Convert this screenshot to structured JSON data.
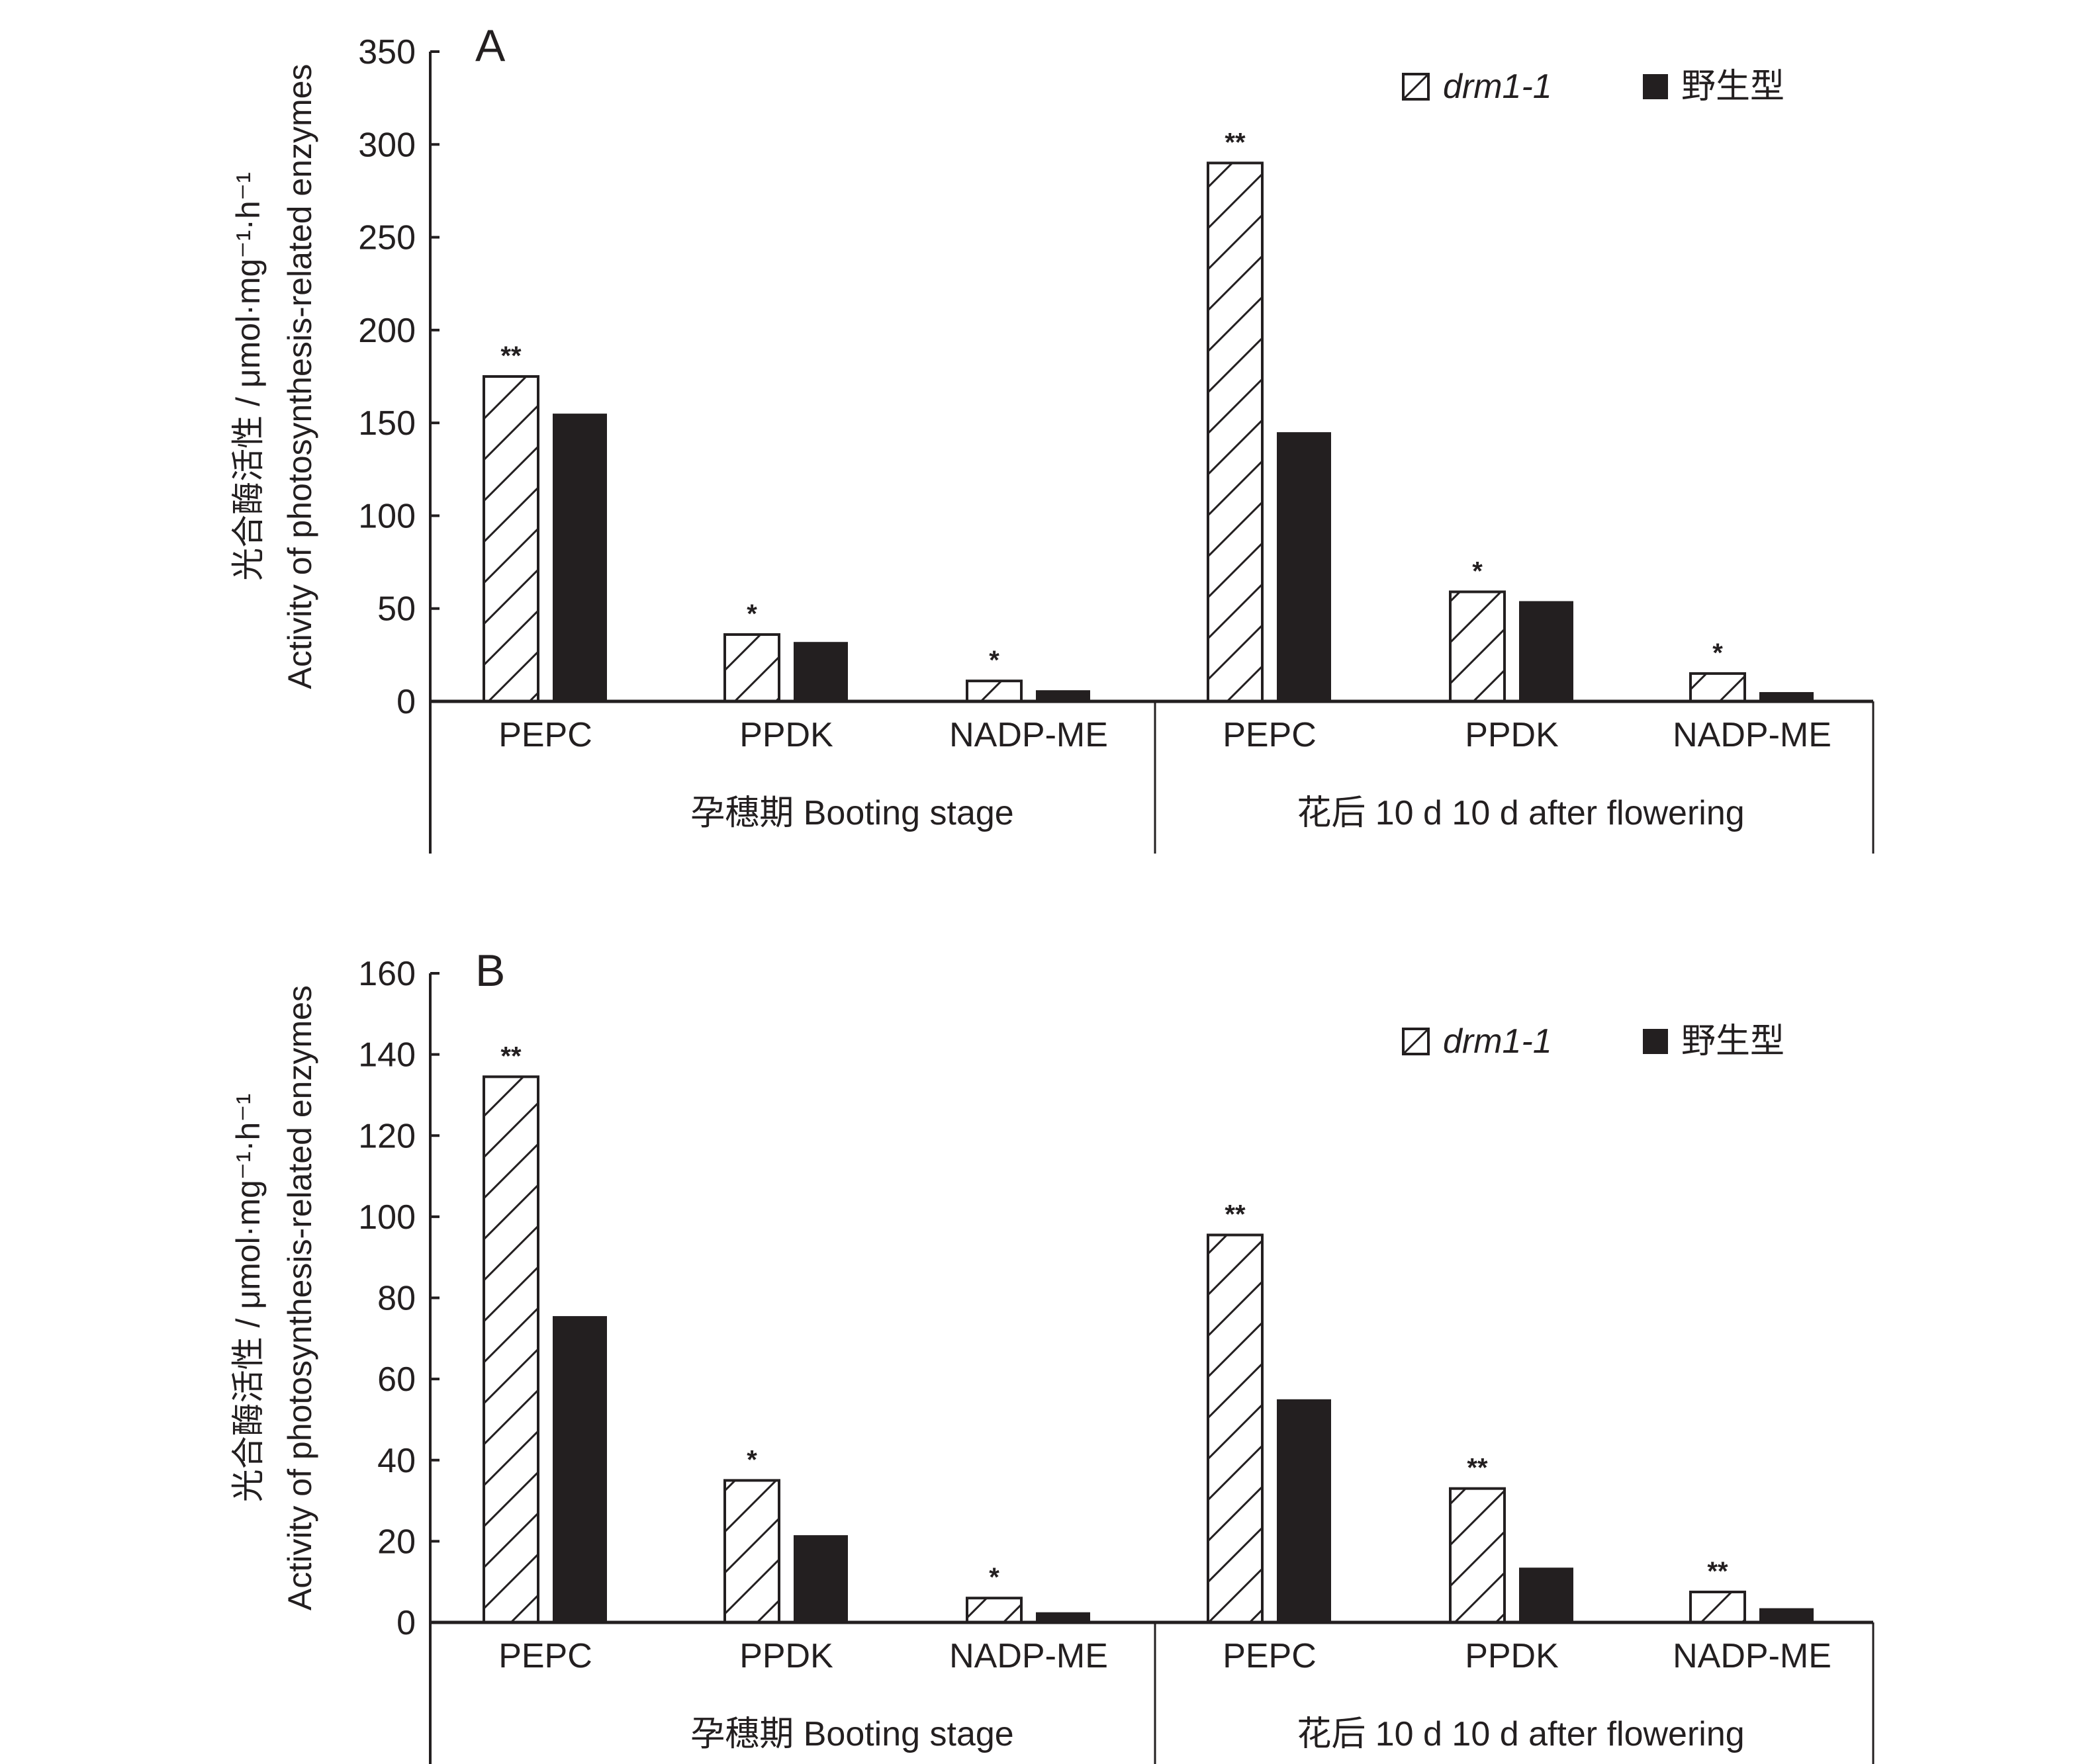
{
  "chart_data": [
    {
      "type": "bar",
      "panel": "A",
      "ylabel_lines": [
        "光合酶活性 / μmol·mg⁻¹·h⁻¹",
        "Activity of photosynthesis-related enzymes"
      ],
      "ylim": [
        0,
        350
      ],
      "yticks": [
        0,
        50,
        100,
        150,
        200,
        250,
        300,
        350
      ],
      "legend": {
        "placement": "top-right",
        "entries": [
          "drm1-1",
          "野生型"
        ]
      },
      "groups": [
        {
          "label": "孕穗期 Booting stage",
          "categories": [
            "PEPC",
            "PPDK",
            "NADP-ME"
          ]
        },
        {
          "label": "花后 10 d 10 d after flowering",
          "categories": [
            "PEPC",
            "PPDK",
            "NADP-ME"
          ]
        }
      ],
      "categories": [
        "PEPC",
        "PPDK",
        "NADP-ME",
        "PEPC",
        "PPDK",
        "NADP-ME"
      ],
      "series": [
        {
          "name": "drm1-1",
          "pattern": "hatched",
          "values": [
            175,
            36,
            11,
            290,
            59,
            15
          ]
        },
        {
          "name": "野生型",
          "pattern": "solid",
          "values": [
            155,
            32,
            6,
            145,
            54,
            5
          ]
        }
      ],
      "significance": [
        "**",
        "*",
        "*",
        "**",
        "*",
        "*"
      ]
    },
    {
      "type": "bar",
      "panel": "B",
      "ylabel_lines": [
        "光合酶活性 / μmol·mg⁻¹·h⁻¹",
        "Activity of photosynthesis-related enzymes"
      ],
      "ylim": [
        0,
        160
      ],
      "yticks": [
        0,
        20,
        40,
        60,
        80,
        100,
        120,
        140,
        160
      ],
      "legend": {
        "placement": "top-right",
        "entries": [
          "drm1-1",
          "野生型"
        ]
      },
      "groups": [
        {
          "label": "孕穗期 Booting stage",
          "categories": [
            "PEPC",
            "PPDK",
            "NADP-ME"
          ]
        },
        {
          "label": "花后 10 d 10 d after flowering",
          "categories": [
            "PEPC",
            "PPDK",
            "NADP-ME"
          ]
        }
      ],
      "categories": [
        "PEPC",
        "PPDK",
        "NADP-ME",
        "PEPC",
        "PPDK",
        "NADP-ME"
      ],
      "series": [
        {
          "name": "drm1-1",
          "pattern": "hatched",
          "values": [
            134.5,
            35,
            6,
            95.5,
            33,
            7.5
          ]
        },
        {
          "name": "野生型",
          "pattern": "solid",
          "values": [
            75.5,
            21.5,
            2.5,
            55,
            13.5,
            3.5
          ]
        }
      ],
      "significance": [
        "**",
        "*",
        "*",
        "**",
        "**",
        "**"
      ]
    }
  ],
  "colors": {
    "ink": "#231f20",
    "background": "#ffffff"
  }
}
